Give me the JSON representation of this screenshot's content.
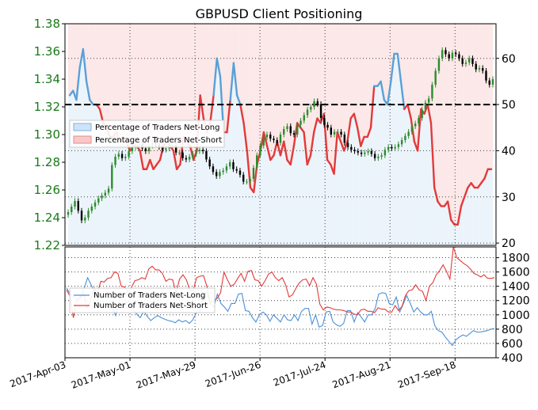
{
  "chart_data": [
    {
      "type": "line",
      "title": "GBPUSD Client Positioning",
      "left_axis": {
        "ticks": [
          1.22,
          1.24,
          1.26,
          1.28,
          1.3,
          1.32,
          1.34,
          1.36,
          1.38
        ],
        "range": [
          1.22,
          1.38
        ]
      },
      "right_axis": {
        "ticks": [
          20,
          30,
          40,
          50,
          60
        ],
        "range": [
          19.5,
          67.5
        ]
      },
      "reference_line": 50,
      "legend": {
        "placement": "center-left",
        "entries": [
          "Percentage of Traders Net-Long",
          "Percentage of Traders Net-Short"
        ]
      },
      "colors": {
        "long": "#5aa0d6",
        "short": "#e23a3a",
        "up": "#2e8b2e",
        "down": "#000000"
      },
      "sentiment_pct_long": [
        52,
        53,
        51,
        58,
        62,
        55,
        51,
        50,
        50,
        49,
        46,
        45,
        43,
        43,
        44,
        42,
        43,
        42,
        40,
        41,
        41,
        40,
        36,
        36,
        38,
        36,
        37,
        38,
        41,
        42,
        41,
        40,
        36,
        37,
        43,
        42,
        41,
        38,
        40,
        52,
        47,
        44,
        46,
        52,
        60,
        56,
        44,
        44,
        51,
        59,
        52,
        50,
        46,
        40,
        32,
        31,
        37,
        40,
        44,
        41,
        38,
        39,
        42,
        39,
        42,
        38,
        37,
        41,
        46,
        45,
        44,
        37,
        39,
        44,
        47,
        46,
        48,
        38,
        37,
        35,
        44,
        42,
        40,
        42,
        47,
        48,
        45,
        41,
        43,
        43,
        45,
        54,
        54,
        55,
        51,
        50,
        55,
        61,
        61,
        55,
        49,
        50,
        47,
        42,
        40,
        49,
        48,
        50,
        46,
        32,
        29,
        28,
        28,
        29,
        25,
        24,
        24,
        28,
        30,
        32,
        33,
        32,
        32,
        33,
        34,
        36,
        36
      ],
      "price_close": [
        1.244,
        1.248,
        1.252,
        1.245,
        1.238,
        1.24,
        1.245,
        1.248,
        1.251,
        1.254,
        1.256,
        1.258,
        1.261,
        1.278,
        1.284,
        1.286,
        1.283,
        1.284,
        1.288,
        1.291,
        1.292,
        1.293,
        1.29,
        1.288,
        1.292,
        1.294,
        1.293,
        1.291,
        1.289,
        1.29,
        1.292,
        1.292,
        1.287,
        1.287,
        1.283,
        1.282,
        1.284,
        1.286,
        1.288,
        1.289,
        1.288,
        1.282,
        1.277,
        1.273,
        1.27,
        1.273,
        1.274,
        1.277,
        1.28,
        1.275,
        1.274,
        1.271,
        1.266,
        1.266,
        1.268,
        1.276,
        1.285,
        1.292,
        1.298,
        1.3,
        1.297,
        1.296,
        1.294,
        1.3,
        1.304,
        1.306,
        1.301,
        1.3,
        1.307,
        1.31,
        1.314,
        1.318,
        1.32,
        1.324,
        1.322,
        1.312,
        1.307,
        1.305,
        1.3,
        1.302,
        1.302,
        1.3,
        1.294,
        1.291,
        1.289,
        1.288,
        1.287,
        1.286,
        1.287,
        1.288,
        1.286,
        1.283,
        1.284,
        1.285,
        1.289,
        1.291,
        1.29,
        1.291,
        1.293,
        1.296,
        1.299,
        1.302,
        1.306,
        1.308,
        1.312,
        1.318,
        1.323,
        1.326,
        1.336,
        1.346,
        1.355,
        1.361,
        1.358,
        1.355,
        1.359,
        1.358,
        1.355,
        1.351,
        1.352,
        1.355,
        1.351,
        1.347,
        1.348,
        1.346,
        1.339,
        1.336,
        1.34
      ],
      "pct_unit": "%"
    },
    {
      "type": "line",
      "y_axis": {
        "ticks": [
          400,
          600,
          800,
          1000,
          1200,
          1400,
          1600,
          1800
        ],
        "range": [
          400,
          1950
        ]
      },
      "x_ticks": [
        "2017-Apr-03",
        "2017-May-01",
        "2017-May-29",
        "2017-Jun-26",
        "2017-Jul-24",
        "2017-Aug-21",
        "2017-Sep-18"
      ],
      "legend": {
        "placement": "center-left",
        "entries": [
          "Number of Traders Net-Long",
          "Number of Traders Net-Short"
        ]
      },
      "series": [
        {
          "name": "Number of Traders Net-Long",
          "color": "#4a90d9",
          "values": [
            1380,
            1290,
            1250,
            1210,
            1250,
            1370,
            1520,
            1420,
            1310,
            1200,
            1190,
            1160,
            1150,
            1100,
            990,
            1180,
            1100,
            1170,
            1190,
            1080,
            1010,
            960,
            1050,
            980,
            920,
            960,
            990,
            960,
            940,
            920,
            910,
            890,
            930,
            900,
            920,
            880,
            930,
            1030,
            1040,
            1240,
            1320,
            1160,
            1110,
            1290,
            1160,
            1110,
            1050,
            1160,
            1160,
            1290,
            1300,
            1060,
            1050,
            960,
            900,
            1000,
            1040,
            1000,
            910,
            1000,
            950,
            900,
            1000,
            930,
            920,
            1000,
            920,
            1050,
            1090,
            1090,
            870,
            1000,
            830,
            850,
            1040,
            1050,
            900,
            860,
            840,
            880,
            1060,
            1060,
            900,
            1030,
            970,
            900,
            1000,
            1000,
            1090,
            1290,
            1310,
            1300,
            1160,
            1140,
            1250,
            1040,
            1150,
            1270,
            1160,
            1040,
            1100,
            1040,
            1000,
            1000,
            1050,
            850,
            780,
            760,
            690,
            630,
            570,
            650,
            690,
            720,
            700,
            740,
            780,
            760,
            760,
            770,
            780,
            800,
            810
          ]
        },
        {
          "name": "Number of Traders Net-Short",
          "color": "#e23a3a",
          "values": [
            1350,
            1260,
            960,
            1210,
            1230,
            1300,
            1100,
            1200,
            1380,
            1300,
            1470,
            1460,
            1510,
            1520,
            1600,
            1580,
            1400,
            1390,
            1300,
            1390,
            1480,
            1490,
            1520,
            1500,
            1640,
            1680,
            1630,
            1630,
            1580,
            1470,
            1500,
            1490,
            1310,
            1500,
            1560,
            1490,
            1350,
            1340,
            1520,
            1540,
            1550,
            1400,
            1170,
            1200,
            1230,
            1310,
            1600,
            1490,
            1400,
            1430,
            1510,
            1580,
            1470,
            1610,
            1620,
            1490,
            1480,
            1400,
            1480,
            1570,
            1600,
            1520,
            1480,
            1520,
            1420,
            1250,
            1280,
            1370,
            1450,
            1490,
            1500,
            1410,
            1520,
            1430,
            1150,
            1070,
            1110,
            1100,
            1080,
            1070,
            1070,
            1060,
            1040,
            1040,
            1010,
            1000,
            1070,
            1080,
            1050,
            1050,
            1030,
            1100,
            1080,
            1080,
            1040,
            1040,
            1130,
            1060,
            1120,
            1270,
            1340,
            1350,
            1420,
            1350,
            1330,
            1200,
            1400,
            1450,
            1560,
            1620,
            1700,
            1610,
            1500,
            1950,
            1800,
            1760,
            1720,
            1690,
            1640,
            1580,
            1560,
            1530,
            1560,
            1510,
            1510,
            1520
          ]
        }
      ]
    }
  ]
}
